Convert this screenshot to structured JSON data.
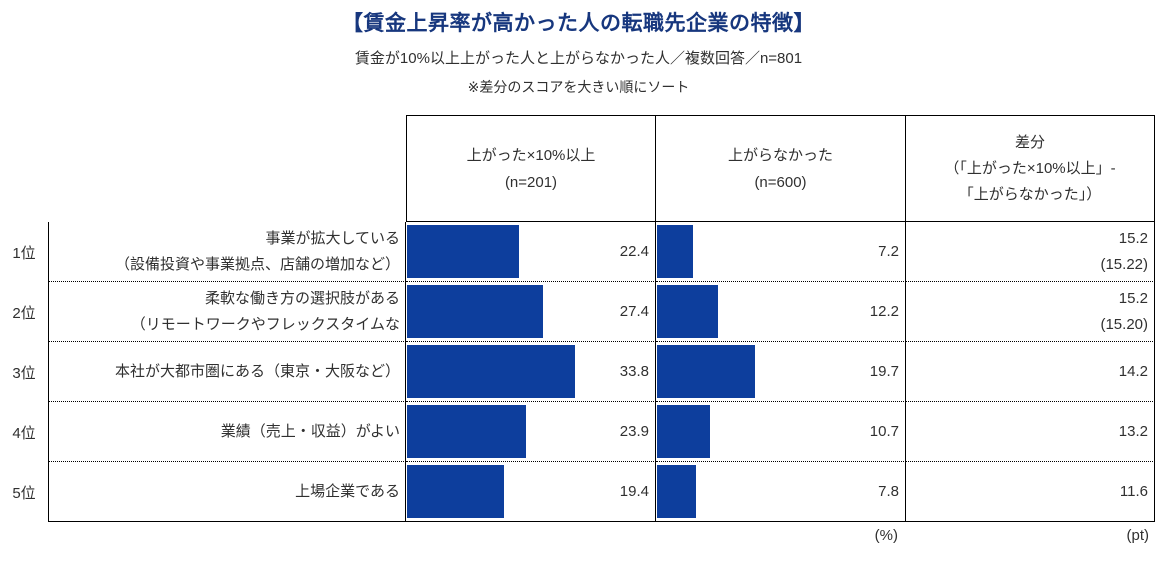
{
  "page": {
    "title": "【賃金上昇率が高かった人の転職先企業の特徴】",
    "subtitle": "賃金が10%以上上がった人と上がらなかった人／複数回答／n=801",
    "note": "※差分のスコアを大きい順にソート"
  },
  "colors": {
    "bar": "#0d3e9d",
    "title": "#17377e",
    "text": "#303030",
    "border": "#000000"
  },
  "table": {
    "bar_axis_max": 50,
    "headers": {
      "col1_line1": "上がった×10%以上",
      "col1_line2": "(n=201)",
      "col2_line1": "上がらなかった",
      "col2_line2": "(n=600)",
      "diff_line1": "差分",
      "diff_line2": "（「上がった×10%以上」-",
      "diff_line3": "「上がらなかった」）"
    },
    "units": {
      "percent": "(%)",
      "point": "(pt)"
    },
    "rows": [
      {
        "rank": "1位",
        "label_line1": "事業が拡大している",
        "label_line2": "（設備投資や事業拠点、店舗の増加など）",
        "col1": 22.4,
        "col2": 7.2,
        "diff": "15.2",
        "diff_sub": "(15.22)"
      },
      {
        "rank": "2位",
        "label_line1": "柔軟な働き方の選択肢がある",
        "label_line2": "（リモートワークやフレックスタイムな",
        "col1": 27.4,
        "col2": 12.2,
        "diff": "15.2",
        "diff_sub": "(15.20)"
      },
      {
        "rank": "3位",
        "label_line1": "本社が大都市圏にある（東京・大阪など）",
        "label_line2": "",
        "col1": 33.8,
        "col2": 19.7,
        "diff": "14.2",
        "diff_sub": ""
      },
      {
        "rank": "4位",
        "label_line1": "業績（売上・収益）がよい",
        "label_line2": "",
        "col1": 23.9,
        "col2": 10.7,
        "diff": "13.2",
        "diff_sub": ""
      },
      {
        "rank": "5位",
        "label_line1": "上場企業である",
        "label_line2": "",
        "col1": 19.4,
        "col2": 7.8,
        "diff": "11.6",
        "diff_sub": ""
      }
    ]
  },
  "chart_data": {
    "type": "bar",
    "orientation": "horizontal",
    "title": "【賃金上昇率が高かった人の転職先企業の特徴】",
    "subtitle": "賃金が10%以上上がった人と上がらなかった人／複数回答／n=801",
    "note": "※差分のスコアを大きい順にソート",
    "categories": [
      "事業が拡大している（設備投資や事業拠点、店舗の増加など）",
      "柔軟な働き方の選択肢がある（リモートワークやフレックスタイムな",
      "本社が大都市圏にある（東京・大阪など）",
      "業績（売上・収益）がよい",
      "上場企業である"
    ],
    "category_ranks": [
      "1位",
      "2位",
      "3位",
      "4位",
      "5位"
    ],
    "series": [
      {
        "name": "上がった×10%以上 (n=201)",
        "unit": "%",
        "values": [
          22.4,
          27.4,
          33.8,
          23.9,
          19.4
        ]
      },
      {
        "name": "上がらなかった (n=600)",
        "unit": "%",
        "values": [
          7.2,
          12.2,
          19.7,
          10.7,
          7.8
        ]
      },
      {
        "name": "差分（「上がった×10%以上」-「上がらなかった」）",
        "unit": "pt",
        "values": [
          15.22,
          15.2,
          14.2,
          13.2,
          11.6
        ]
      }
    ],
    "xlim": [
      0,
      50
    ],
    "grid": false,
    "legend_position": "column-headers",
    "bar_color": "#0d3e9d"
  }
}
